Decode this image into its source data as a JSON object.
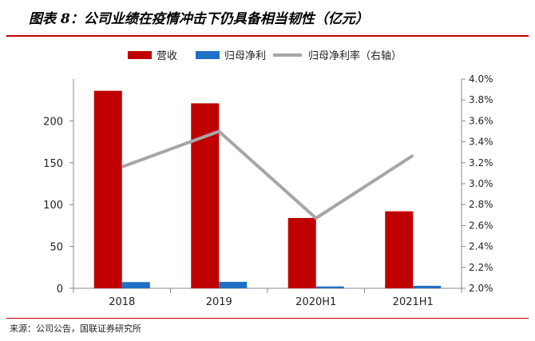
{
  "figure_title": "图表 8：公司业绩在疫情冲击下仍具备相当韧性（亿元）",
  "source": "来源：公司公告，国联证券研究所",
  "chart_data": {
    "type": "bar",
    "categories": [
      "2018",
      "2019",
      "2020H1",
      "2021H1"
    ],
    "series": [
      {
        "name": "营收",
        "type": "bar",
        "axis": "left",
        "color": "#c00000",
        "values": [
          236,
          221,
          84,
          92
        ]
      },
      {
        "name": "归母净利",
        "type": "bar",
        "axis": "left",
        "color": "#1f6fc5",
        "values": [
          7.4,
          7.7,
          2.2,
          3.0
        ]
      },
      {
        "name": "归母净利率（右轴）",
        "type": "line",
        "axis": "right",
        "color": "#a6a6a6",
        "values": [
          3.16,
          3.5,
          2.67,
          3.27
        ]
      }
    ],
    "yleft": {
      "min": 0,
      "max": 250,
      "ticks": [
        "0",
        "50",
        "100",
        "150",
        "200"
      ],
      "tick_values": [
        0,
        50,
        100,
        150,
        200
      ]
    },
    "yright": {
      "min": 2.0,
      "max": 4.0,
      "ticks": [
        "2.0%",
        "2.2%",
        "2.4%",
        "2.6%",
        "2.8%",
        "3.0%",
        "3.2%",
        "3.4%",
        "3.6%",
        "3.8%",
        "4.0%"
      ],
      "tick_values": [
        2.0,
        2.2,
        2.4,
        2.6,
        2.8,
        3.0,
        3.2,
        3.4,
        3.6,
        3.8,
        4.0
      ]
    },
    "legend_position": "top",
    "grid": false
  }
}
